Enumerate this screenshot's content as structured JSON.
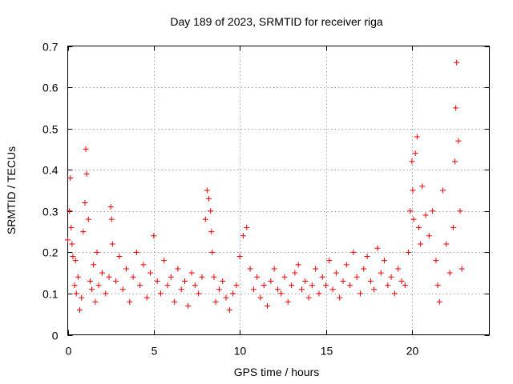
{
  "chart_data": {
    "type": "scatter",
    "title": "Day 189 of 2023, SRMTID for receiver riga",
    "xlabel": "GPS time / hours",
    "ylabel": "SRMTID / TECUs",
    "xlim": [
      0,
      24.5
    ],
    "ylim": [
      0,
      0.7
    ],
    "x_ticks": [
      0,
      5,
      10,
      15,
      20
    ],
    "x_tick_labels": [
      "0",
      "5",
      "10",
      "15",
      "20"
    ],
    "y_ticks": [
      0,
      0.1,
      0.2,
      0.3,
      0.4,
      0.5,
      0.6,
      0.7
    ],
    "y_tick_labels": [
      "0",
      "0.1",
      "0.2",
      "0.3",
      "0.4",
      "0.5",
      "0.6",
      "0.7"
    ],
    "grid": true,
    "marker": "plus",
    "color": "#ee0000",
    "series": [
      {
        "name": "SRMTID",
        "x": [
          0.0,
          0.1,
          0.15,
          0.2,
          0.25,
          0.3,
          0.4,
          0.45,
          0.5,
          0.6,
          0.7,
          0.8,
          0.9,
          1.0,
          1.05,
          1.1,
          1.2,
          1.3,
          1.4,
          1.5,
          1.6,
          1.7,
          1.8,
          2.0,
          2.2,
          2.4,
          2.5,
          2.55,
          2.6,
          2.8,
          3.0,
          3.2,
          3.4,
          3.6,
          3.8,
          4.0,
          4.2,
          4.4,
          4.6,
          4.8,
          5.0,
          5.2,
          5.4,
          5.6,
          5.8,
          6.0,
          6.2,
          6.4,
          6.6,
          6.8,
          7.0,
          7.2,
          7.4,
          7.6,
          7.8,
          8.0,
          8.1,
          8.2,
          8.3,
          8.35,
          8.4,
          8.5,
          8.6,
          8.8,
          9.0,
          9.2,
          9.4,
          9.6,
          9.8,
          10.0,
          10.2,
          10.4,
          10.6,
          10.8,
          11.0,
          11.2,
          11.4,
          11.6,
          11.8,
          12.0,
          12.2,
          12.4,
          12.6,
          12.8,
          13.0,
          13.2,
          13.4,
          13.6,
          13.8,
          14.0,
          14.2,
          14.4,
          14.6,
          14.8,
          15.0,
          15.2,
          15.4,
          15.6,
          15.8,
          16.0,
          16.2,
          16.4,
          16.6,
          16.8,
          17.0,
          17.2,
          17.4,
          17.6,
          17.8,
          18.0,
          18.2,
          18.4,
          18.6,
          18.8,
          19.0,
          19.2,
          19.4,
          19.6,
          19.8,
          19.9,
          20.0,
          20.05,
          20.1,
          20.2,
          20.3,
          20.4,
          20.5,
          20.6,
          20.8,
          21.0,
          21.2,
          21.4,
          21.5,
          21.6,
          21.8,
          22.0,
          22.2,
          22.4,
          22.5,
          22.55,
          22.6,
          22.7,
          22.8,
          22.9
        ],
        "y": [
          0.23,
          0.3,
          0.38,
          0.26,
          0.22,
          0.19,
          0.12,
          0.18,
          0.1,
          0.14,
          0.06,
          0.09,
          0.25,
          0.32,
          0.45,
          0.39,
          0.28,
          0.13,
          0.11,
          0.17,
          0.08,
          0.2,
          0.12,
          0.15,
          0.1,
          0.14,
          0.31,
          0.28,
          0.22,
          0.13,
          0.19,
          0.11,
          0.16,
          0.08,
          0.14,
          0.2,
          0.12,
          0.17,
          0.09,
          0.15,
          0.24,
          0.13,
          0.1,
          0.18,
          0.12,
          0.14,
          0.08,
          0.16,
          0.11,
          0.13,
          0.07,
          0.15,
          0.12,
          0.1,
          0.14,
          0.28,
          0.35,
          0.33,
          0.3,
          0.25,
          0.2,
          0.14,
          0.08,
          0.11,
          0.13,
          0.09,
          0.06,
          0.1,
          0.12,
          0.19,
          0.24,
          0.26,
          0.16,
          0.11,
          0.14,
          0.09,
          0.12,
          0.07,
          0.13,
          0.16,
          0.11,
          0.1,
          0.14,
          0.08,
          0.12,
          0.15,
          0.17,
          0.11,
          0.13,
          0.09,
          0.12,
          0.16,
          0.1,
          0.14,
          0.12,
          0.18,
          0.11,
          0.15,
          0.09,
          0.13,
          0.17,
          0.12,
          0.2,
          0.14,
          0.1,
          0.16,
          0.19,
          0.13,
          0.11,
          0.21,
          0.15,
          0.18,
          0.12,
          0.14,
          0.1,
          0.16,
          0.13,
          0.12,
          0.2,
          0.3,
          0.42,
          0.35,
          0.28,
          0.44,
          0.48,
          0.26,
          0.22,
          0.36,
          0.29,
          0.24,
          0.3,
          0.18,
          0.12,
          0.08,
          0.35,
          0.22,
          0.15,
          0.26,
          0.42,
          0.55,
          0.66,
          0.47,
          0.3,
          0.16
        ]
      }
    ]
  }
}
